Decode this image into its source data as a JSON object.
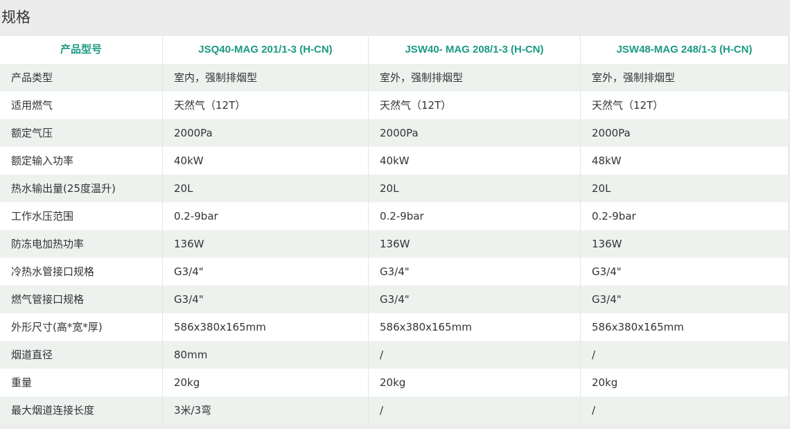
{
  "title": "规格",
  "table": {
    "header": [
      "产品型号",
      "JSQ40-MAG 201/1-3 (H-CN)",
      "JSW40- MAG 208/1-3 (H-CN)",
      "JSW48-MAG 248/1-3 (H-CN)"
    ],
    "rows": [
      [
        "产品类型",
        "室内，强制排烟型",
        "室外，强制排烟型",
        "室外，强制排烟型"
      ],
      [
        "适用燃气",
        "天然气（12T）",
        "天然气（12T）",
        "天然气（12T）"
      ],
      [
        "额定气压",
        "2000Pa",
        "2000Pa",
        "2000Pa"
      ],
      [
        "额定输入功率",
        "40kW",
        "40kW",
        "48kW"
      ],
      [
        "热水输出量(25度温升)",
        "20L",
        "20L",
        "20L"
      ],
      [
        "工作水压范围",
        "0.2-9bar",
        "0.2-9bar",
        "0.2-9bar"
      ],
      [
        "防冻电加热功率",
        "136W",
        "136W",
        "136W"
      ],
      [
        "冷热水管接口规格",
        "G3/4\"",
        "G3/4\"",
        "G3/4\""
      ],
      [
        "燃气管接口规格",
        "G3/4\"",
        "G3/4\"",
        "G3/4\""
      ],
      [
        "外形尺寸(高*宽*厚)",
        "586x380x165mm",
        "586x380x165mm",
        "586x380x165mm"
      ],
      [
        "烟道直径",
        "80mm",
        "/",
        "/"
      ],
      [
        "重量",
        "20kg",
        "20kg",
        "20kg"
      ],
      [
        "最大烟道连接长度",
        "3米/3弯",
        "/",
        "/"
      ]
    ]
  }
}
